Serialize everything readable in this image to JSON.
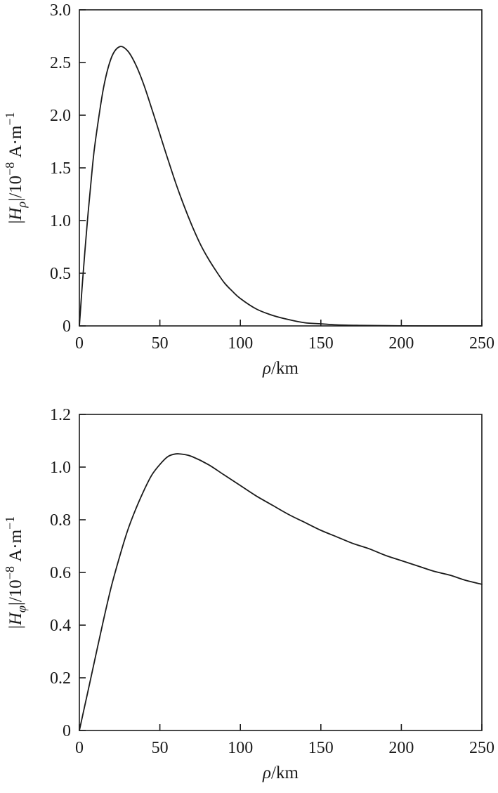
{
  "figure": {
    "background": "#ffffff",
    "line_color": "#1a1a1a"
  },
  "chart_data": [
    {
      "type": "line",
      "title": "",
      "xlabel": "ρ/km",
      "ylabel": "|H_ρ|/10⁻⁸ A·m⁻¹",
      "xlabel_segments": [
        {
          "t": "ρ",
          "style": "italic"
        },
        {
          "t": "/km",
          "style": "normal"
        }
      ],
      "ylabel_segments": [
        {
          "t": "|",
          "style": "normal"
        },
        {
          "t": "H",
          "style": "italic"
        },
        {
          "t": "ρ",
          "style": "sub-italic"
        },
        {
          "t": "|/10",
          "style": "normal"
        },
        {
          "t": "−8",
          "style": "sup"
        },
        {
          "t": " A·m",
          "style": "normal"
        },
        {
          "t": "−1",
          "style": "sup"
        }
      ],
      "xlim": [
        0,
        250
      ],
      "ylim": [
        0,
        3.0
      ],
      "xticks": [
        0,
        50,
        100,
        150,
        200,
        250
      ],
      "xtick_labels": [
        "0",
        "50",
        "100",
        "150",
        "200",
        "250"
      ],
      "yticks": [
        0,
        0.5,
        1.0,
        1.5,
        2.0,
        2.5,
        3.0
      ],
      "ytick_labels": [
        "0",
        "0.5",
        "1.0",
        "1.5",
        "2.0",
        "2.5",
        "3.0"
      ],
      "grid": false,
      "legend": "none",
      "peak": {
        "x": 26,
        "y": 2.65
      },
      "series": [
        {
          "name": "|H_rho|",
          "x": [
            0,
            2,
            5,
            8,
            10,
            15,
            20,
            25,
            30,
            35,
            40,
            45,
            50,
            55,
            60,
            65,
            70,
            75,
            80,
            85,
            90,
            95,
            100,
            110,
            120,
            130,
            140,
            150,
            160,
            175,
            200,
            225,
            250
          ],
          "y": [
            0,
            0.43,
            1.0,
            1.49,
            1.76,
            2.26,
            2.55,
            2.65,
            2.61,
            2.48,
            2.29,
            2.06,
            1.82,
            1.58,
            1.35,
            1.14,
            0.95,
            0.78,
            0.64,
            0.52,
            0.41,
            0.33,
            0.26,
            0.16,
            0.1,
            0.06,
            0.03,
            0.02,
            0.01,
            0.005,
            0.001,
            0,
            0
          ]
        }
      ]
    },
    {
      "type": "line",
      "title": "",
      "xlabel": "ρ/km",
      "ylabel": "|H_φ|/10⁻⁸ A·m⁻¹",
      "xlabel_segments": [
        {
          "t": "ρ",
          "style": "italic"
        },
        {
          "t": "/km",
          "style": "normal"
        }
      ],
      "ylabel_segments": [
        {
          "t": "|",
          "style": "normal"
        },
        {
          "t": "H",
          "style": "italic"
        },
        {
          "t": "φ",
          "style": "sub-italic"
        },
        {
          "t": "|/10",
          "style": "normal"
        },
        {
          "t": "−8",
          "style": "sup"
        },
        {
          "t": " A·m",
          "style": "normal"
        },
        {
          "t": "−1",
          "style": "sup"
        }
      ],
      "xlim": [
        0,
        250
      ],
      "ylim": [
        0,
        1.2
      ],
      "xticks": [
        0,
        50,
        100,
        150,
        200,
        250
      ],
      "xtick_labels": [
        "0",
        "50",
        "100",
        "150",
        "200",
        "250"
      ],
      "yticks": [
        0,
        0.2,
        0.4,
        0.6,
        0.8,
        1.0,
        1.2
      ],
      "ytick_labels": [
        "0",
        "0.2",
        "0.4",
        "0.6",
        "0.8",
        "1.0",
        "1.2"
      ],
      "grid": false,
      "legend": "none",
      "peak": {
        "x": 58,
        "y": 1.05
      },
      "series": [
        {
          "name": "|H_phi|",
          "x": [
            0,
            5,
            10,
            15,
            20,
            25,
            30,
            35,
            40,
            45,
            50,
            55,
            60,
            65,
            70,
            80,
            90,
            100,
            110,
            120,
            130,
            140,
            150,
            160,
            170,
            180,
            190,
            200,
            210,
            220,
            230,
            240,
            250
          ],
          "y": [
            0,
            0.14,
            0.28,
            0.42,
            0.55,
            0.66,
            0.76,
            0.84,
            0.91,
            0.97,
            1.01,
            1.04,
            1.05,
            1.048,
            1.04,
            1.01,
            0.97,
            0.93,
            0.89,
            0.855,
            0.82,
            0.79,
            0.76,
            0.735,
            0.71,
            0.69,
            0.665,
            0.645,
            0.625,
            0.605,
            0.59,
            0.57,
            0.555
          ]
        }
      ]
    }
  ]
}
